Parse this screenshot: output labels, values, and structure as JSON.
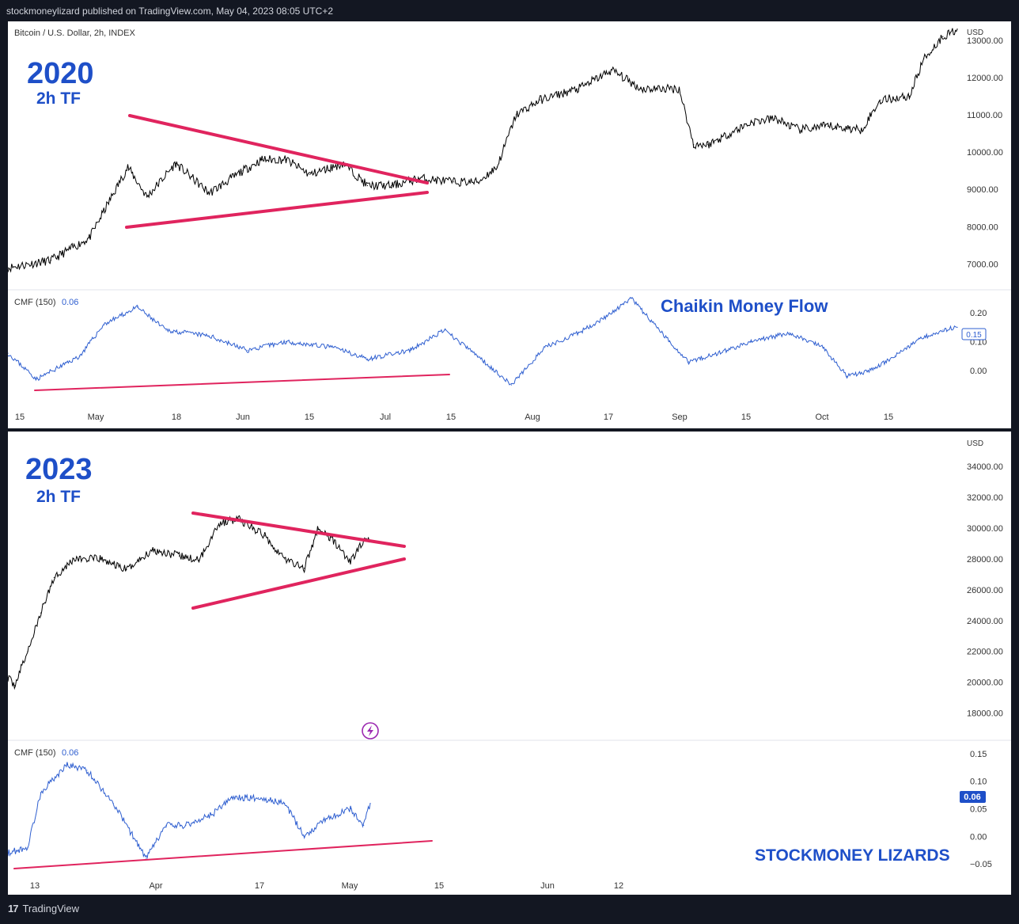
{
  "header": {
    "published": "stockmoneylizard published on TradingView.com, May 04, 2023 08:05 UTC+2"
  },
  "footer": {
    "brand": "TradingView",
    "logo_glyph": "17"
  },
  "colors": {
    "price": "#000000",
    "cmf": "#2f5fd0",
    "trendline": "#e0245e",
    "annotation": "#1e4fc8",
    "axis_text": "#333333"
  },
  "panels": [
    {
      "id": "2020",
      "symbol": "Bitcoin / U.S. Dollar, 2h, INDEX",
      "year_label": "2020",
      "tf_label": "2h TF",
      "currency": "USD",
      "price_ticks": [
        "13000.00",
        "12000.00",
        "11000.00",
        "10000.00",
        "9000.00",
        "8000.00",
        "7000.00"
      ],
      "cmf_title": "CMF (150)",
      "cmf_value": "0.06",
      "cmf_last_badge": "0.15",
      "cmf_ticks": [
        "0.20",
        "0.10",
        "0.00"
      ],
      "cmf_annotation": "Chaikin Money Flow",
      "date_ticks": [
        "15",
        "May",
        "18",
        "Jun",
        "15",
        "Jul",
        "15",
        "Aug",
        "17",
        "Sep",
        "15",
        "Oct",
        "15"
      ]
    },
    {
      "id": "2023",
      "symbol": "",
      "year_label": "2023",
      "tf_label": "2h TF",
      "currency": "USD",
      "price_ticks": [
        "34000.00",
        "32000.00",
        "30000.00",
        "28000.00",
        "26000.00",
        "24000.00",
        "22000.00",
        "20000.00",
        "18000.00"
      ],
      "cmf_title": "CMF (150)",
      "cmf_value": "0.06",
      "cmf_last_badge": "0.06",
      "cmf_ticks": [
        "0.15",
        "0.10",
        "0.05",
        "0.00",
        "−0.05"
      ],
      "brand_annotation": "STOCKMONEY LIZARDS",
      "date_ticks": [
        "13",
        "Apr",
        "17",
        "May",
        "15",
        "Jun",
        "12"
      ]
    }
  ],
  "chart_data": [
    {
      "type": "line",
      "title": "Bitcoin / U.S. Dollar, 2h, INDEX",
      "subtitle": "2020 2h TF",
      "series": [
        {
          "name": "BTCUSD",
          "x": [
            "2020-04-13",
            "2020-04-22",
            "2020-04-30",
            "2020-05-08",
            "2020-05-12",
            "2020-05-18",
            "2020-05-25",
            "2020-06-01",
            "2020-06-05",
            "2020-06-10",
            "2020-06-15",
            "2020-06-22",
            "2020-06-27",
            "2020-07-02",
            "2020-07-08",
            "2020-07-15",
            "2020-07-20",
            "2020-07-24",
            "2020-07-28",
            "2020-08-02",
            "2020-08-10",
            "2020-08-17",
            "2020-08-23",
            "2020-08-31",
            "2020-09-03",
            "2020-09-06",
            "2020-09-15",
            "2020-09-20",
            "2020-09-25",
            "2020-10-01",
            "2020-10-08",
            "2020-10-12",
            "2020-10-18",
            "2020-10-21",
            "2020-10-25",
            "2020-10-28"
          ],
          "values": [
            6900,
            7100,
            7700,
            9600,
            8800,
            9700,
            8900,
            9500,
            9800,
            9800,
            9400,
            9700,
            9100,
            9100,
            9300,
            9200,
            9200,
            9600,
            11000,
            11400,
            11700,
            12200,
            11700,
            11700,
            10200,
            10200,
            10800,
            10900,
            10600,
            10700,
            10600,
            11400,
            11500,
            12500,
            13100,
            13300
          ]
        }
      ],
      "ylim": [
        6500,
        13400
      ]
    },
    {
      "type": "line",
      "title": "CMF (150)",
      "subtitle": "2020",
      "series": [
        {
          "name": "CMF (150)",
          "x": [
            "2020-04-13",
            "2020-04-19",
            "2020-04-28",
            "2020-05-03",
            "2020-05-10",
            "2020-05-16",
            "2020-05-25",
            "2020-06-02",
            "2020-06-10",
            "2020-06-20",
            "2020-06-27",
            "2020-07-06",
            "2020-07-13",
            "2020-07-20",
            "2020-07-27",
            "2020-08-03",
            "2020-08-10",
            "2020-08-17",
            "2020-08-21",
            "2020-08-29",
            "2020-09-02",
            "2020-09-10",
            "2020-09-15",
            "2020-09-23",
            "2020-09-30",
            "2020-10-05",
            "2020-10-10",
            "2020-10-15",
            "2020-10-20",
            "2020-10-25",
            "2020-10-28"
          ],
          "values": [
            0.06,
            -0.03,
            0.05,
            0.16,
            0.22,
            0.14,
            0.12,
            0.07,
            0.1,
            0.08,
            0.04,
            0.07,
            0.14,
            0.05,
            -0.05,
            0.08,
            0.13,
            0.2,
            0.25,
            0.1,
            0.03,
            0.07,
            0.1,
            0.13,
            0.08,
            -0.02,
            0.0,
            0.05,
            0.11,
            0.14,
            0.15
          ]
        }
      ],
      "ylim": [
        -0.08,
        0.25
      ]
    },
    {
      "type": "line",
      "title": "",
      "subtitle": "2023 2h TF",
      "series": [
        {
          "name": "BTCUSD",
          "x": [
            "2023-03-10",
            "2023-03-11",
            "2023-03-13",
            "2023-03-15",
            "2023-03-17",
            "2023-03-20",
            "2023-03-24",
            "2023-03-28",
            "2023-04-01",
            "2023-04-05",
            "2023-04-08",
            "2023-04-11",
            "2023-04-14",
            "2023-04-18",
            "2023-04-21",
            "2023-04-24",
            "2023-04-26",
            "2023-04-28",
            "2023-05-01",
            "2023-05-03",
            "2023-05-04"
          ],
          "values": [
            20300,
            19800,
            22000,
            24500,
            26800,
            28000,
            28000,
            27300,
            28600,
            28200,
            27900,
            30300,
            30600,
            29500,
            28000,
            27400,
            29900,
            29400,
            27800,
            29200,
            29200
          ]
        }
      ],
      "ylim": [
        17000,
        35500
      ]
    },
    {
      "type": "line",
      "title": "CMF (150)",
      "subtitle": "2023",
      "series": [
        {
          "name": "CMF (150)",
          "x": [
            "2023-03-10",
            "2023-03-13",
            "2023-03-15",
            "2023-03-19",
            "2023-03-22",
            "2023-03-26",
            "2023-03-31",
            "2023-04-03",
            "2023-04-06",
            "2023-04-10",
            "2023-04-13",
            "2023-04-17",
            "2023-04-21",
            "2023-04-24",
            "2023-04-27",
            "2023-05-01",
            "2023-05-03",
            "2023-05-04"
          ],
          "values": [
            -0.03,
            -0.02,
            0.08,
            0.13,
            0.12,
            0.06,
            -0.04,
            0.02,
            0.02,
            0.04,
            0.07,
            0.07,
            0.06,
            0.0,
            0.03,
            0.05,
            0.02,
            0.06
          ]
        }
      ],
      "ylim": [
        -0.07,
        0.16
      ]
    }
  ]
}
